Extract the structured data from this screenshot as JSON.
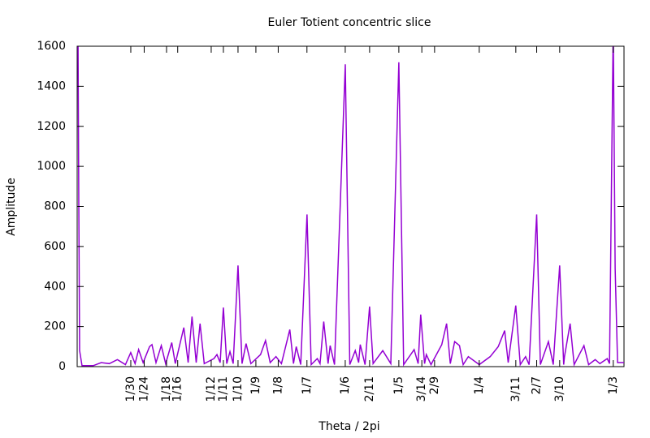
{
  "chart_data": {
    "type": "line",
    "title": "Euler Totient concentric slice",
    "x_label": "Theta / 2pi",
    "y_label": "Amplitude",
    "color": "#9400d3",
    "xlim": [
      0,
      0.34
    ],
    "ylim": [
      0,
      1600
    ],
    "yticks": [
      0,
      200,
      400,
      600,
      800,
      1000,
      1200,
      1400,
      1600
    ],
    "xticks": [
      {
        "value": 0.03333,
        "label": "1/30"
      },
      {
        "value": 0.04167,
        "label": "1/24"
      },
      {
        "value": 0.05556,
        "label": "1/18"
      },
      {
        "value": 0.0625,
        "label": "1/16"
      },
      {
        "value": 0.08333,
        "label": "1/12"
      },
      {
        "value": 0.09091,
        "label": "1/11"
      },
      {
        "value": 0.1,
        "label": "1/10"
      },
      {
        "value": 0.11111,
        "label": "1/9"
      },
      {
        "value": 0.125,
        "label": "1/8"
      },
      {
        "value": 0.14286,
        "label": "1/7"
      },
      {
        "value": 0.16667,
        "label": "1/6"
      },
      {
        "value": 0.18182,
        "label": "2/11"
      },
      {
        "value": 0.2,
        "label": "1/5"
      },
      {
        "value": 0.21429,
        "label": "3/14"
      },
      {
        "value": 0.22222,
        "label": "2/9"
      },
      {
        "value": 0.25,
        "label": "1/4"
      },
      {
        "value": 0.27273,
        "label": "3/11"
      },
      {
        "value": 0.28571,
        "label": "2/7"
      },
      {
        "value": 0.3,
        "label": "3/10"
      },
      {
        "value": 0.33333,
        "label": "1/3"
      }
    ],
    "x": [
      0.0005,
      0.001,
      0.0015,
      0.003,
      0.01,
      0.015,
      0.02,
      0.025,
      0.028,
      0.03,
      0.0333,
      0.036,
      0.0382,
      0.041,
      0.045,
      0.0465,
      0.049,
      0.0523,
      0.055,
      0.0588,
      0.061,
      0.0663,
      0.069,
      0.0714,
      0.074,
      0.0764,
      0.079,
      0.085,
      0.0869,
      0.0889,
      0.0909,
      0.093,
      0.095,
      0.097,
      0.1,
      0.1025,
      0.105,
      0.108,
      0.114,
      0.1171,
      0.12,
      0.1236,
      0.127,
      0.1322,
      0.1345,
      0.1362,
      0.139,
      0.1429,
      0.1455,
      0.1493,
      0.151,
      0.1533,
      0.156,
      0.1573,
      0.16,
      0.1667,
      0.1695,
      0.1729,
      0.175,
      0.176,
      0.179,
      0.1818,
      0.184,
      0.19,
      0.195,
      0.2,
      0.203,
      0.2095,
      0.212,
      0.2136,
      0.216,
      0.2171,
      0.22,
      0.2267,
      0.2297,
      0.232,
      0.2347,
      0.2377,
      0.24,
      0.2432,
      0.25,
      0.2568,
      0.2618,
      0.2658,
      0.268,
      0.2727,
      0.2755,
      0.2788,
      0.281,
      0.2857,
      0.288,
      0.293,
      0.296,
      0.3,
      0.3025,
      0.303,
      0.3065,
      0.309,
      0.3151,
      0.318,
      0.3221,
      0.325,
      0.3296,
      0.331,
      0.3333,
      0.3345,
      0.336,
      0.34
    ],
    "values": [
      1700,
      820,
      80,
      5,
      5,
      20,
      15,
      35,
      20,
      10,
      70,
      15,
      85,
      20,
      100,
      110,
      20,
      105,
      15,
      120,
      15,
      195,
      20,
      250,
      20,
      215,
      15,
      40,
      60,
      20,
      295,
      15,
      75,
      15,
      505,
      15,
      115,
      15,
      60,
      130,
      20,
      50,
      15,
      185,
      15,
      100,
      10,
      760,
      10,
      40,
      15,
      225,
      15,
      105,
      10,
      1510,
      10,
      80,
      20,
      110,
      10,
      300,
      15,
      80,
      15,
      1520,
      10,
      85,
      15,
      260,
      15,
      60,
      10,
      110,
      215,
      15,
      125,
      105,
      10,
      50,
      10,
      50,
      100,
      180,
      20,
      305,
      10,
      50,
      10,
      760,
      10,
      125,
      10,
      505,
      10,
      50,
      215,
      10,
      105,
      10,
      35,
      15,
      40,
      15,
      1700,
      490,
      20,
      20
    ]
  }
}
